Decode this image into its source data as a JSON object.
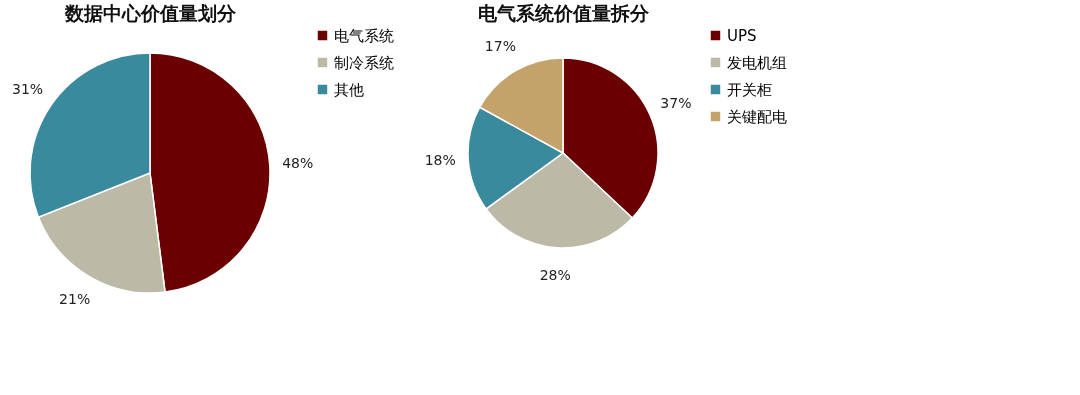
{
  "chart_data": [
    {
      "type": "pie",
      "title": "数据中心价值量划分",
      "categories": [
        "电气系统",
        "制冷系统",
        "其他"
      ],
      "values": [
        48,
        21,
        31
      ],
      "colors": [
        "#6b0000",
        "#bdb9a7",
        "#3a8a9e"
      ],
      "value_labels": [
        "48%",
        "21%",
        "31%"
      ],
      "legend": "right"
    },
    {
      "type": "pie",
      "title": "电气系统价值量拆分",
      "categories": [
        "UPS",
        "发电机组",
        "开关柜",
        "关键配电"
      ],
      "values": [
        37,
        28,
        18,
        17
      ],
      "colors": [
        "#6b0000",
        "#bdb9a7",
        "#3a8a9e",
        "#c4a36a"
      ],
      "value_labels": [
        "37%",
        "28%",
        "18%",
        "17%"
      ],
      "legend": "right"
    }
  ]
}
